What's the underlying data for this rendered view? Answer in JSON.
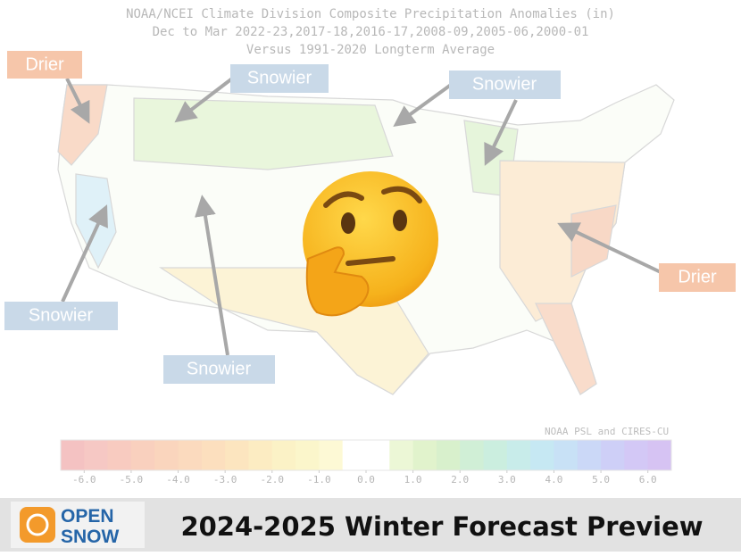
{
  "header": {
    "lines": [
      "NOAA/NCEI Climate Division Composite Precipitation Anomalies (in)",
      "Dec to Mar  2022-23,2017-18,2016-17,2008-09,2005-06,2000-01",
      "Versus 1991-2020 Longterm Average"
    ]
  },
  "callouts": [
    {
      "label": "Drier"
    },
    {
      "label": "Snowier"
    },
    {
      "label": "Snowier"
    },
    {
      "label": "Drier"
    },
    {
      "label": "Snowier"
    },
    {
      "label": "Snowier"
    }
  ],
  "credit": "NOAA PSL and CIRES-CU",
  "colorbar": {
    "range": [
      -6.5,
      6.5
    ],
    "colors": [
      "#f4c2c2",
      "#f6c8c4",
      "#f8cbc0",
      "#f9d0be",
      "#fad5bd",
      "#fbdabe",
      "#fcdfbe",
      "#fce5bf",
      "#fcecc2",
      "#fbf2c6",
      "#fbf6cb",
      "#fdf9d5",
      "#ffffff",
      "#ffffff",
      "#ecf7d6",
      "#e1f3cc",
      "#d8f0cc",
      "#d0efd6",
      "#cbeedf",
      "#c8ecea",
      "#c6e8f3",
      "#c8e1f6",
      "#cbd8f7",
      "#cecff7",
      "#d3c8f6",
      "#d6c3f3"
    ],
    "ticks": [
      {
        "value": -6,
        "label": "-6.0"
      },
      {
        "value": -5,
        "label": "-5.0"
      },
      {
        "value": -4,
        "label": "-4.0"
      },
      {
        "value": -3,
        "label": "-3.0"
      },
      {
        "value": -2,
        "label": "-2.0"
      },
      {
        "value": -1,
        "label": "-1.0"
      },
      {
        "value": 0,
        "label": "0.0"
      },
      {
        "value": 1,
        "label": "1.0"
      },
      {
        "value": 2,
        "label": "2.0"
      },
      {
        "value": 3,
        "label": "3.0"
      },
      {
        "value": 4,
        "label": "4.0"
      },
      {
        "value": 5,
        "label": "5.0"
      },
      {
        "value": 6,
        "label": "6.0"
      }
    ]
  },
  "banner": {
    "logo": [
      "OPEN",
      "SNOW"
    ],
    "title": "2024-2025 Winter Forecast Preview"
  }
}
